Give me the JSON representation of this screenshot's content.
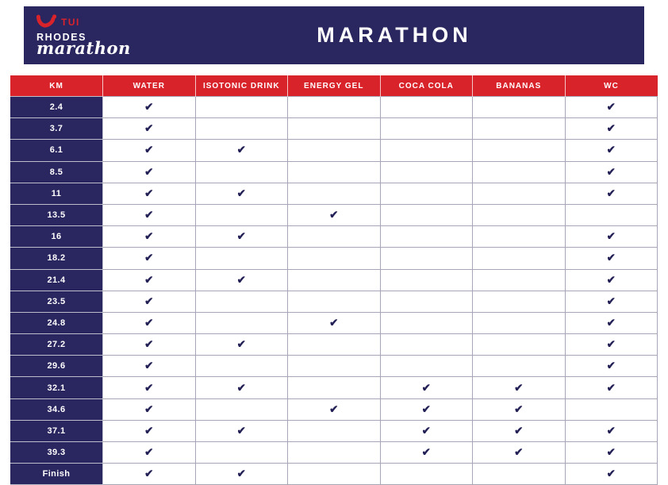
{
  "header": {
    "brand": "TUI",
    "logo_line1": "RHODES",
    "logo_line2": "marathon",
    "title": "MARATHON"
  },
  "table": {
    "columns": [
      "KM",
      "WATER",
      "ISOTONIC DRINK",
      "ENERGY GEL",
      "COCA COLA",
      "BANANAS",
      "WC"
    ],
    "check_glyph": "✔",
    "rows": [
      {
        "km": "2.4",
        "checks": [
          true,
          false,
          false,
          false,
          false,
          true
        ]
      },
      {
        "km": "3.7",
        "checks": [
          true,
          false,
          false,
          false,
          false,
          true
        ]
      },
      {
        "km": "6.1",
        "checks": [
          true,
          true,
          false,
          false,
          false,
          true
        ]
      },
      {
        "km": "8.5",
        "checks": [
          true,
          false,
          false,
          false,
          false,
          true
        ]
      },
      {
        "km": "11",
        "checks": [
          true,
          true,
          false,
          false,
          false,
          true
        ]
      },
      {
        "km": "13.5",
        "checks": [
          true,
          false,
          true,
          false,
          false,
          false
        ]
      },
      {
        "km": "16",
        "checks": [
          true,
          true,
          false,
          false,
          false,
          true
        ]
      },
      {
        "km": "18.2",
        "checks": [
          true,
          false,
          false,
          false,
          false,
          true
        ]
      },
      {
        "km": "21.4",
        "checks": [
          true,
          true,
          false,
          false,
          false,
          true
        ]
      },
      {
        "km": "23.5",
        "checks": [
          true,
          false,
          false,
          false,
          false,
          true
        ]
      },
      {
        "km": "24.8",
        "checks": [
          true,
          false,
          true,
          false,
          false,
          true
        ]
      },
      {
        "km": "27.2",
        "checks": [
          true,
          true,
          false,
          false,
          false,
          true
        ]
      },
      {
        "km": "29.6",
        "checks": [
          true,
          false,
          false,
          false,
          false,
          true
        ]
      },
      {
        "km": "32.1",
        "checks": [
          true,
          true,
          false,
          true,
          true,
          true
        ]
      },
      {
        "km": "34.6",
        "checks": [
          true,
          false,
          true,
          true,
          true,
          false
        ]
      },
      {
        "km": "37.1",
        "checks": [
          true,
          true,
          false,
          true,
          true,
          true
        ]
      },
      {
        "km": "39.3",
        "checks": [
          true,
          false,
          false,
          true,
          true,
          true
        ]
      },
      {
        "km": "Finish",
        "checks": [
          true,
          true,
          false,
          false,
          false,
          true
        ]
      }
    ]
  },
  "colors": {
    "navy": "#2A265F",
    "red": "#D9232B",
    "check": "#232056",
    "grid": "#A6A6B7"
  }
}
